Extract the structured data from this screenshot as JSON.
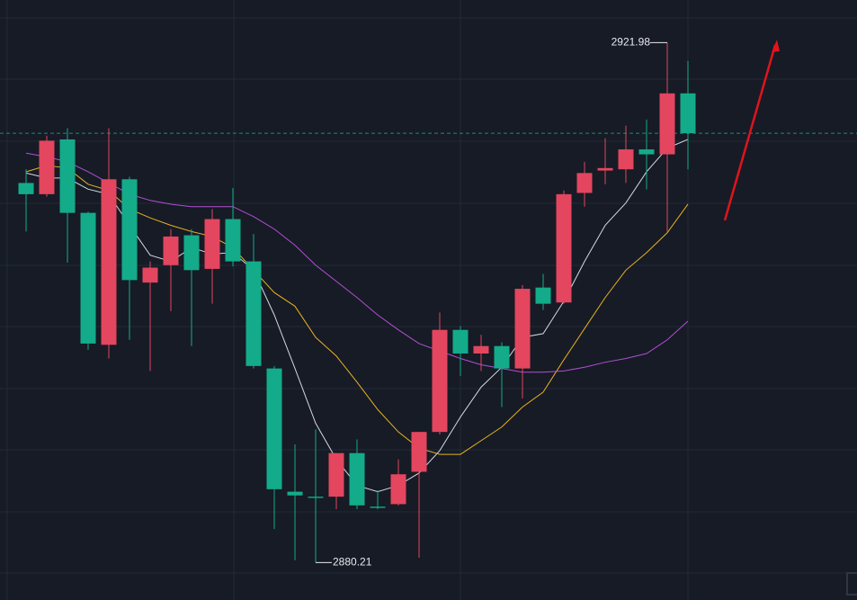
{
  "chart_data": {
    "type": "candlestick",
    "open": [
      2910.7,
      2909.8,
      2914.2,
      2908.3,
      2897.7,
      2911.0,
      2902.7,
      2904.1,
      2906.5,
      2903.8,
      2907.8,
      2904.4,
      2895.8,
      2885.9,
      2885.5,
      2885.5,
      2889.0,
      2884.7,
      2884.9,
      2887.5,
      2890.7,
      2898.9,
      2897.0,
      2897.6,
      2895.8,
      2902.3,
      2901.1,
      2909.9,
      2911.7,
      2911.8,
      2913.4,
      2913.0,
      2917.9
    ],
    "high": [
      2911.8,
      2914.5,
      2915.1,
      2908.4,
      2915.1,
      2911.2,
      2904.4,
      2907.0,
      2907.0,
      2908.6,
      2910.3,
      2906.6,
      2896.0,
      2889.7,
      2890.9,
      2889.0,
      2890.1,
      2886.0,
      2888.5,
      2890.7,
      2900.3,
      2899.2,
      2898.5,
      2897.9,
      2902.5,
      2903.4,
      2910.1,
      2912.4,
      2914.3,
      2915.3,
      2915.8,
      2921.98,
      2920.5
    ],
    "low": [
      2906.8,
      2909.6,
      2904.3,
      2897.3,
      2896.6,
      2898.1,
      2895.6,
      2900.4,
      2897.6,
      2901.0,
      2904.0,
      2895.8,
      2882.9,
      2880.4,
      2880.21,
      2884.5,
      2884.5,
      2884.5,
      2884.8,
      2880.6,
      2890.5,
      2895.2,
      2895.6,
      2892.7,
      2893.4,
      2900.5,
      2901.0,
      2908.8,
      2910.6,
      2910.7,
      2910.2,
      2906.8,
      2911.8
    ],
    "close": [
      2909.8,
      2914.1,
      2908.3,
      2897.8,
      2911.0,
      2902.9,
      2903.9,
      2906.4,
      2903.7,
      2907.8,
      2904.4,
      2896.0,
      2886.1,
      2885.6,
      2885.4,
      2889.0,
      2884.8,
      2884.6,
      2887.3,
      2890.7,
      2898.9,
      2897.0,
      2897.6,
      2895.8,
      2902.2,
      2901.0,
      2909.8,
      2911.5,
      2911.9,
      2913.4,
      2913.0,
      2917.9,
      2914.7
    ],
    "up_color": "#e3465e",
    "down_color": "#14ab8a",
    "series": [
      {
        "color": "#d5d8de",
        "values": [
          2911.5,
          2911.1,
          2911.1,
          2910.2,
          2909.8,
          2907.3,
          2904.9,
          2904.4,
          2905.5,
          2905.0,
          2905.1,
          2903.7,
          2900.1,
          2895.8,
          2891.4,
          2888.5,
          2886.4,
          2885.9,
          2886.4,
          2887.4,
          2889.2,
          2891.9,
          2894.3,
          2895.9,
          2898.3,
          2898.6,
          2901.2,
          2904.4,
          2907.3,
          2909.1,
          2911.6,
          2913.5,
          2914.2
        ]
      },
      {
        "color": "#e8b220",
        "values": [
          2911.6,
          2912.1,
          2911.9,
          2910.6,
          2910.1,
          2908.6,
          2907.9,
          2907.3,
          2906.8,
          2906.4,
          2905.5,
          2903.7,
          2901.9,
          2900.8,
          2898.3,
          2896.8,
          2894.7,
          2892.5,
          2890.7,
          2889.4,
          2888.9,
          2888.9,
          2890.0,
          2891.1,
          2892.7,
          2893.9,
          2896.5,
          2899.0,
          2901.5,
          2903.7,
          2905.1,
          2906.7,
          2909.0
        ]
      },
      {
        "color": "#b24fd0",
        "values": [
          2913.1,
          2912.8,
          2912.4,
          2911.6,
          2910.7,
          2909.8,
          2909.3,
          2909.0,
          2908.8,
          2908.8,
          2908.8,
          2908.0,
          2907.0,
          2905.7,
          2904.1,
          2902.8,
          2901.5,
          2900.1,
          2898.9,
          2897.8,
          2897.2,
          2896.6,
          2896.1,
          2895.8,
          2895.5,
          2895.5,
          2895.6,
          2895.9,
          2896.3,
          2896.6,
          2897.0,
          2898.1,
          2899.6
        ]
      }
    ],
    "ylim": [
      2877.2,
      2925.4
    ]
  }
}
